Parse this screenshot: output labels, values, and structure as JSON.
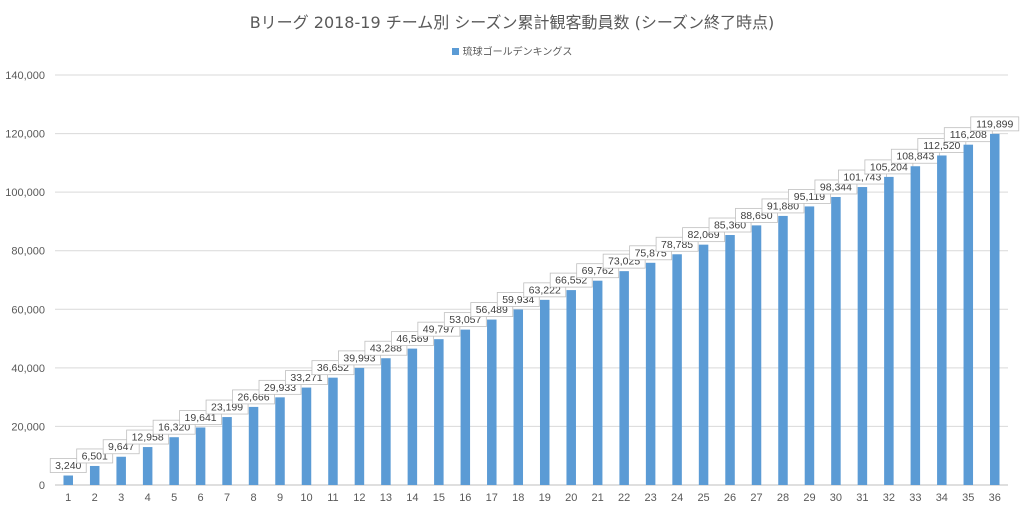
{
  "chart_data": {
    "type": "bar",
    "title": "Bリーグ 2018-19 チーム別 シーズン累計観客動員数 (シーズン終了時点)",
    "categories": [
      "1",
      "2",
      "3",
      "4",
      "5",
      "6",
      "7",
      "8",
      "9",
      "10",
      "11",
      "12",
      "13",
      "14",
      "15",
      "16",
      "17",
      "18",
      "19",
      "20",
      "21",
      "22",
      "23",
      "24",
      "25",
      "26",
      "27",
      "28",
      "29",
      "30",
      "31",
      "32",
      "33",
      "34",
      "35",
      "36"
    ],
    "series": [
      {
        "name": "琉球ゴールデンキングス",
        "color": "#5b9bd5",
        "values": [
          3240,
          6501,
          9647,
          12958,
          16320,
          19641,
          23199,
          26666,
          29933,
          33271,
          36652,
          39993,
          43288,
          46569,
          49797,
          53057,
          56489,
          59934,
          63222,
          66552,
          69762,
          73025,
          75875,
          78785,
          82069,
          85360,
          88650,
          91880,
          95119,
          98344,
          101743,
          105204,
          108843,
          112520,
          116208,
          119899
        ]
      }
    ],
    "data_labels": [
      "3,240",
      "6,501",
      "9,647",
      "12,958",
      "16,320",
      "19,641",
      "23,199",
      "26,666",
      "29,933",
      "33,271",
      "36,652",
      "39,993",
      "43,288",
      "46,569",
      "49,797",
      "53,057",
      "56,489",
      "59,934",
      "63,222",
      "66,552",
      "69,762",
      "73,025",
      "75,875",
      "78,785",
      "82,069",
      "85,360",
      "88,650",
      "91,880",
      "95,119",
      "98,344",
      "101,743",
      "105,204",
      "108,843",
      "112,520",
      "116,208",
      "119,899"
    ],
    "y_ticks": [
      0,
      20000,
      40000,
      60000,
      80000,
      100000,
      120000,
      140000
    ],
    "y_tick_labels": [
      "0",
      "20,000",
      "40,000",
      "60,000",
      "80,000",
      "100,000",
      "120,000",
      "140,000"
    ],
    "ylim": [
      0,
      140000
    ],
    "grid": true,
    "legend_position": "top"
  }
}
